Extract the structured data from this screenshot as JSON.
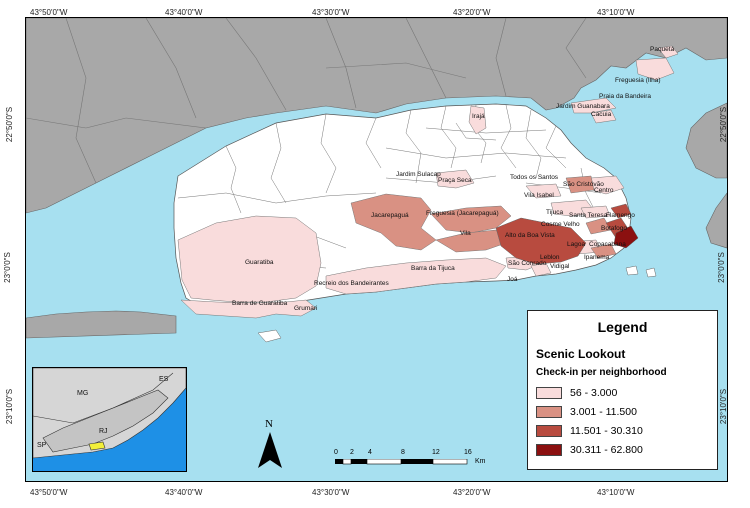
{
  "colors": {
    "water": "#a7e0f0",
    "land_outside": "#a8a8a8",
    "class1": "#f9dcdc",
    "class2": "#d99183",
    "class3": "#b84b3f",
    "class4": "#8b1010",
    "no_data": "#ffffff",
    "inset_ocean": "#1e90e6",
    "inset_land": "#d6d6d6",
    "inset_highlight": "#f2ef3a"
  },
  "graticule": {
    "top": [
      "43°50'0\"W",
      "43°40'0\"W",
      "43°30'0\"W",
      "43°20'0\"W",
      "43°10'0\"W"
    ],
    "bottom": [
      "43°50'0\"W",
      "43°40'0\"W",
      "43°30'0\"W",
      "43°20'0\"W",
      "43°10'0\"W"
    ],
    "left": [
      "22°50'0\"S",
      "23°0'0\"S",
      "23°10'0\"S"
    ],
    "right": [
      "22°50'0\"S",
      "23°0'0\"S",
      "23°10'0\"S"
    ]
  },
  "legend": {
    "title": "Legend",
    "subtitle": "Scenic Lookout",
    "field": "Check-in per neighborhood",
    "classes": [
      {
        "label": "56 - 3.000",
        "color_key": "class1"
      },
      {
        "label": "3.001 - 11.500",
        "color_key": "class2"
      },
      {
        "label": "11.501 - 30.310",
        "color_key": "class3"
      },
      {
        "label": "30.311 - 62.800",
        "color_key": "class4"
      }
    ]
  },
  "map_labels": {
    "paqueta": "Paquetá",
    "freguesia_ilha": "Freguesia (Ilha)",
    "praia_bandeira": "Praia da Bandeira",
    "jardim_guanabara": "Jardim Guanabara",
    "cacuia": "Cacuia",
    "iraja": "Irajá",
    "jardim_sulacap": "Jardim Sulacap",
    "praca_seca": "Praça Seca",
    "todos_santos": "Todos os Santos",
    "sao_cristovao": "São Cristóvão",
    "centro": "Centro",
    "vila_isabel": "Vila Isabel",
    "tijuca": "Tijuca",
    "santa_teresa": "Santa Teresa",
    "flamengo": "Flamengo",
    "cosme_velho": "Cosme Velho",
    "botafogo": "Botafogo",
    "jacarepagua": "Jacarepaguá",
    "freguesia_jpa": "Freguesia (Jacarepaguá)",
    "vila": "Vila",
    "alto_boa_vista": "Alto da Boa Vista",
    "lagoa": "Lagoa",
    "copacabana": "Copacabana",
    "guaratiba": "Guaratiba",
    "barra_tijuca": "Barra da Tijuca",
    "sao_conrado": "São Conrado",
    "leblon": "Leblon",
    "ipanema": "Ipanema",
    "vidigal": "Vidigal",
    "joa": "Joá",
    "recreio": "Recreio dos Bandeirantes",
    "barra_guaratiba": "Barra de Guaratiba",
    "grumari": "Grumari"
  },
  "inset": {
    "mg": "MG",
    "es": "ES",
    "rj": "RJ",
    "sp": "SP"
  },
  "north_arrow": "N",
  "scale_bar": {
    "ticks": [
      "0",
      "2",
      "4",
      "8",
      "12",
      "16"
    ],
    "unit": "Km"
  }
}
